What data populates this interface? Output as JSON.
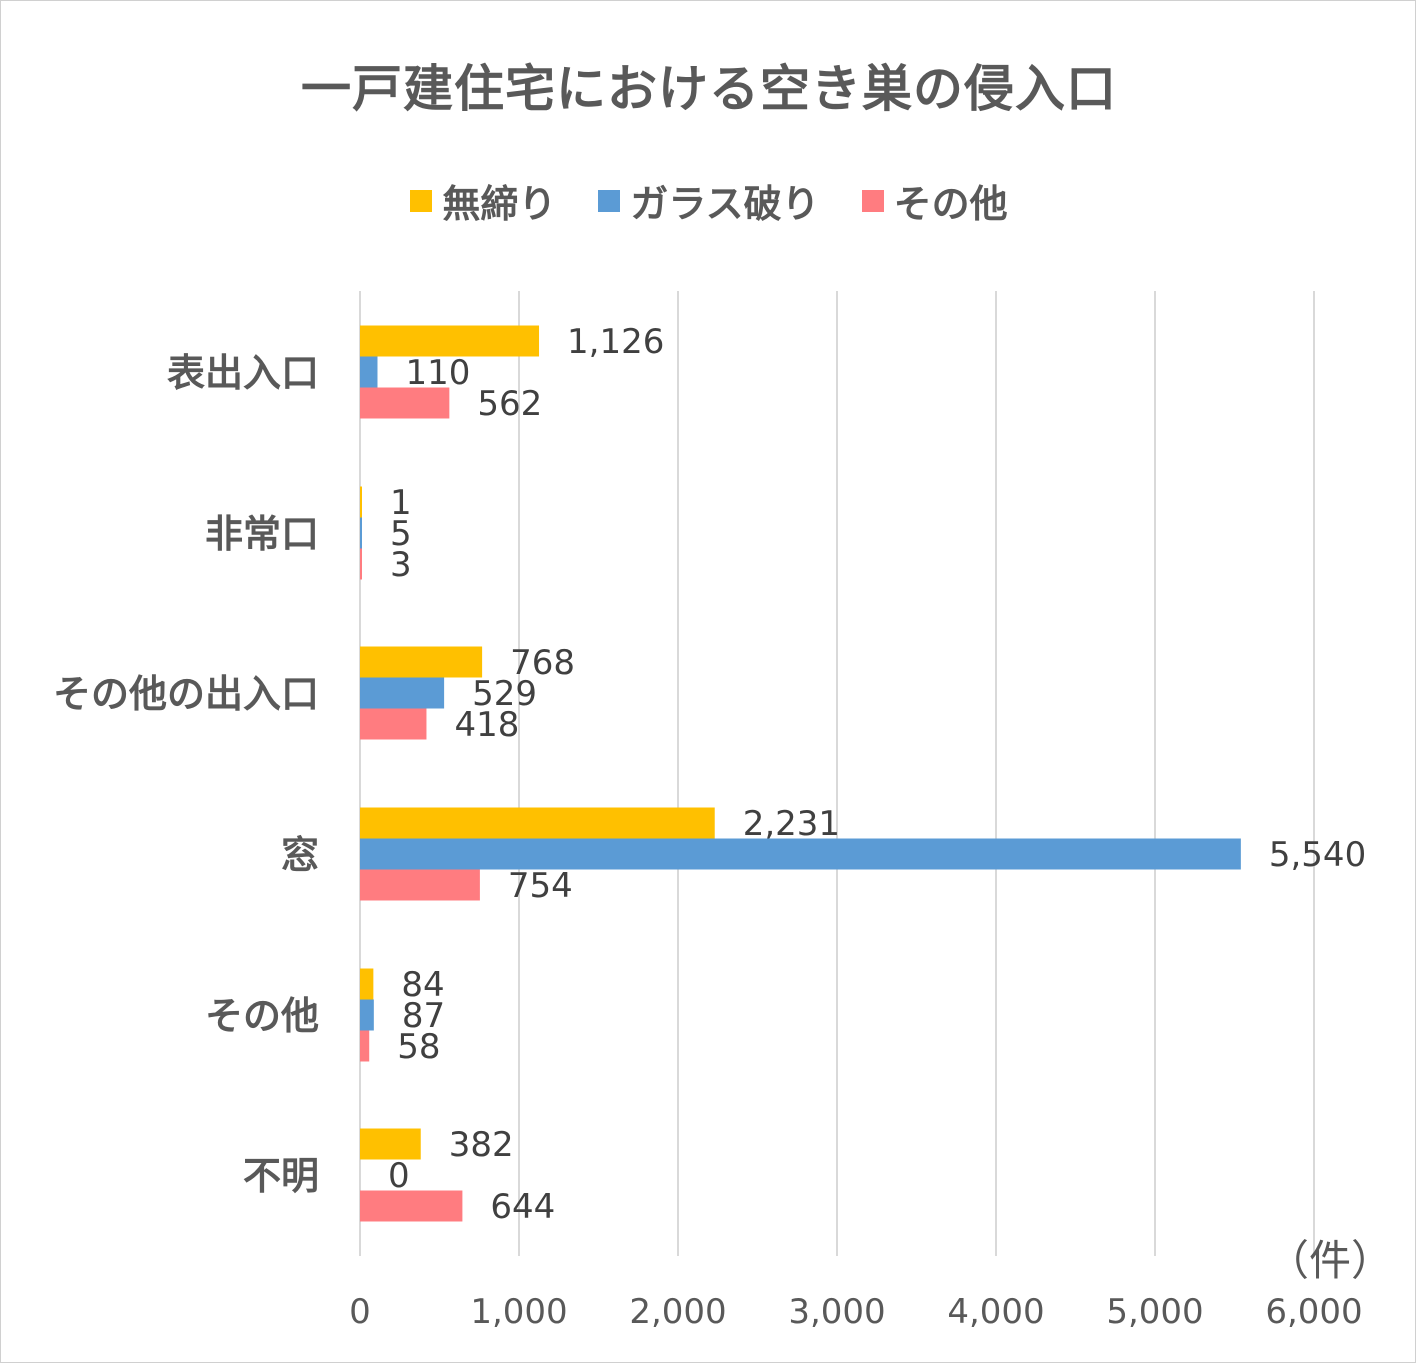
{
  "chart_data": {
    "type": "bar",
    "orientation": "horizontal",
    "title": "一戸建住宅における空き巣の侵入口",
    "categories": [
      "表出入口",
      "非常口",
      "その他の出入口",
      "窓",
      "その他",
      "不明"
    ],
    "series": [
      {
        "name": "無締り",
        "color": "#FFC000",
        "values": [
          1126,
          1,
          768,
          2231,
          84,
          382
        ],
        "labels": [
          "1,126",
          "1",
          "768",
          "2,231",
          "84",
          "382"
        ]
      },
      {
        "name": "ガラス破り",
        "color": "#5B9BD5",
        "values": [
          110,
          5,
          529,
          5540,
          87,
          0
        ],
        "labels": [
          "110",
          "5",
          "529",
          "5,540",
          "87",
          "0"
        ]
      },
      {
        "name": "その他",
        "color": "#FF7C80",
        "values": [
          562,
          3,
          418,
          754,
          58,
          644
        ],
        "labels": [
          "562",
          "3",
          "418",
          "754",
          "58",
          "644"
        ]
      }
    ],
    "xlim": [
      0,
      6000
    ],
    "xticks": [
      0,
      1000,
      2000,
      3000,
      4000,
      5000,
      6000
    ],
    "xtick_labels": [
      "0",
      "1,000",
      "2,000",
      "3,000",
      "4,000",
      "5,000",
      "6,000"
    ],
    "unit": "（件）",
    "grid": true,
    "legend_position": "top"
  }
}
